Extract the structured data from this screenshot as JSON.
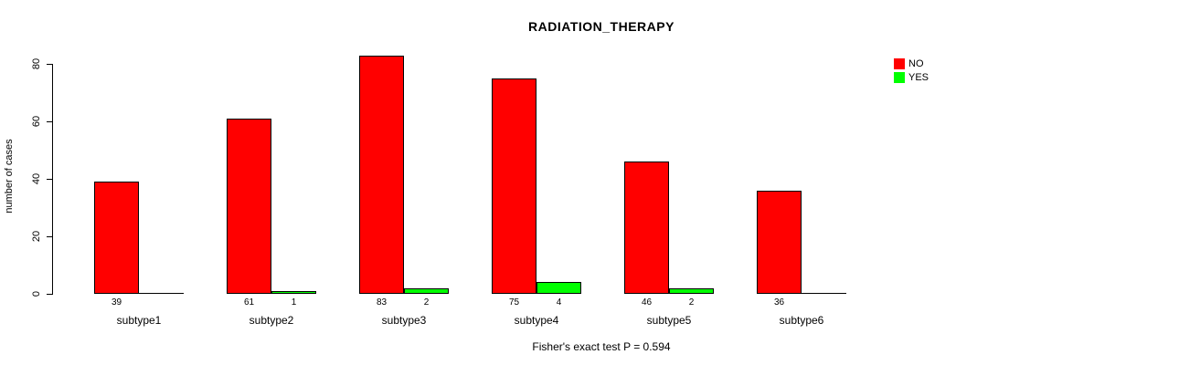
{
  "chart_data": {
    "type": "bar",
    "title": "RADIATION_THERAPY",
    "ylabel": "number of cases",
    "caption": "Fisher's exact test P = 0.594",
    "categories": [
      "subtype1",
      "subtype2",
      "subtype3",
      "subtype4",
      "subtype5",
      "subtype6"
    ],
    "series": [
      {
        "name": "NO",
        "color": "#ff0000",
        "values": [
          39,
          61,
          83,
          75,
          46,
          36
        ]
      },
      {
        "name": "YES",
        "color": "#00ff00",
        "values": [
          0,
          1,
          2,
          4,
          2,
          0
        ]
      }
    ],
    "value_labels": [
      [
        "39",
        "61",
        "83",
        "75",
        "46",
        "36"
      ],
      [
        "",
        "1",
        "2",
        "4",
        "2",
        ""
      ]
    ],
    "yticks": [
      "0",
      "20",
      "40",
      "60",
      "80"
    ],
    "ylim": [
      0,
      80
    ],
    "legend_position": "top-right",
    "grid": false
  }
}
